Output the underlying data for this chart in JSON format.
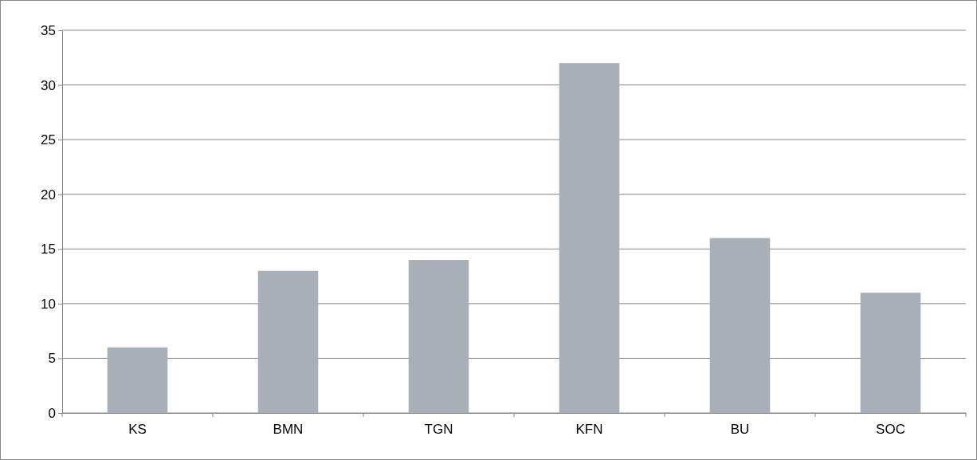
{
  "chart_data": {
    "type": "bar",
    "categories": [
      "KS",
      "BMN",
      "TGN",
      "KFN",
      "BU",
      "SOC"
    ],
    "values": [
      6,
      13,
      14,
      32,
      16,
      11
    ],
    "color": "#a9afb7",
    "ylim": [
      0,
      35
    ],
    "yticks": [
      0,
      5,
      10,
      15,
      20,
      25,
      30,
      35
    ],
    "grid": "y"
  }
}
